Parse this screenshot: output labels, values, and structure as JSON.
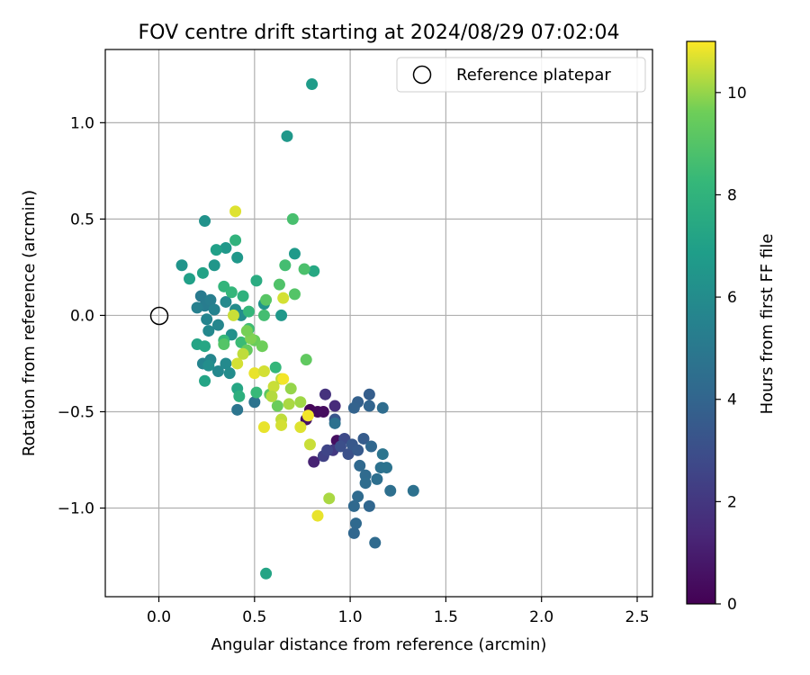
{
  "chart_data": {
    "type": "scatter",
    "title": "FOV centre drift starting at 2024/08/29 07:02:04",
    "xlabel": "Angular distance from reference (arcmin)",
    "ylabel": "Rotation from reference (arcmin)",
    "xlim": [
      -0.28,
      2.58
    ],
    "ylim": [
      -1.46,
      1.38
    ],
    "x_ticks": [
      {
        "value": 0.0,
        "label": "0.0"
      },
      {
        "value": 0.5,
        "label": "0.5"
      },
      {
        "value": 1.0,
        "label": "1.0"
      },
      {
        "value": 1.5,
        "label": "1.5"
      },
      {
        "value": 2.0,
        "label": "2.0"
      },
      {
        "value": 2.5,
        "label": "2.5"
      }
    ],
    "y_ticks": [
      {
        "value": 1.0,
        "label": "1.0"
      },
      {
        "value": 0.5,
        "label": "0.5"
      },
      {
        "value": 0.0,
        "label": "0.0"
      },
      {
        "value": -0.5,
        "label": "−0.5"
      },
      {
        "value": -1.0,
        "label": "−1.0"
      }
    ],
    "grid": true,
    "legend": {
      "placement": "top-right",
      "entries": [
        "Reference platepar"
      ]
    },
    "reference_point": {
      "x": 0.0,
      "y": 0.0
    },
    "colorbar": {
      "label": "Hours from first FF file",
      "min": 0,
      "max": 11,
      "colormap": "viridis",
      "ticks": [
        {
          "value": 0,
          "label": "0"
        },
        {
          "value": 2,
          "label": "2"
        },
        {
          "value": 4,
          "label": "4"
        },
        {
          "value": 6,
          "label": "6"
        },
        {
          "value": 8,
          "label": "8"
        },
        {
          "value": 10,
          "label": "10"
        }
      ]
    },
    "points": [
      {
        "x": 0.79,
        "y": -0.49,
        "h": 0.2
      },
      {
        "x": 0.83,
        "y": -0.5,
        "h": 0.3
      },
      {
        "x": 0.86,
        "y": -0.5,
        "h": 0.4
      },
      {
        "x": 0.93,
        "y": -0.65,
        "h": 0.5
      },
      {
        "x": 0.77,
        "y": -0.54,
        "h": 0.6
      },
      {
        "x": 0.81,
        "y": -0.76,
        "h": 1.2
      },
      {
        "x": 0.92,
        "y": -0.47,
        "h": 1.5
      },
      {
        "x": 0.87,
        "y": -0.41,
        "h": 1.8
      },
      {
        "x": 0.91,
        "y": -0.7,
        "h": 2.1
      },
      {
        "x": 0.86,
        "y": -0.73,
        "h": 2.4
      },
      {
        "x": 0.88,
        "y": -0.7,
        "h": 2.6
      },
      {
        "x": 0.97,
        "y": -0.64,
        "h": 2.8
      },
      {
        "x": 0.95,
        "y": -0.68,
        "h": 3.0
      },
      {
        "x": 0.99,
        "y": -0.72,
        "h": 3.1
      },
      {
        "x": 0.92,
        "y": -0.54,
        "h": 3.3
      },
      {
        "x": 1.01,
        "y": -0.67,
        "h": 3.4
      },
      {
        "x": 1.04,
        "y": -0.7,
        "h": 3.5
      },
      {
        "x": 1.07,
        "y": -0.64,
        "h": 3.6
      },
      {
        "x": 1.1,
        "y": -0.41,
        "h": 3.7
      },
      {
        "x": 1.04,
        "y": -0.45,
        "h": 3.8
      },
      {
        "x": 1.02,
        "y": -0.48,
        "h": 3.9
      },
      {
        "x": 1.1,
        "y": -0.47,
        "h": 4.0
      },
      {
        "x": 1.11,
        "y": -0.68,
        "h": 4.1
      },
      {
        "x": 1.05,
        "y": -0.78,
        "h": 4.2
      },
      {
        "x": 1.08,
        "y": -0.83,
        "h": 4.3
      },
      {
        "x": 1.08,
        "y": -0.87,
        "h": 4.4
      },
      {
        "x": 1.14,
        "y": -0.85,
        "h": 4.5
      },
      {
        "x": 1.16,
        "y": -0.79,
        "h": 4.6
      },
      {
        "x": 1.19,
        "y": -0.79,
        "h": 4.7
      },
      {
        "x": 1.17,
        "y": -0.72,
        "h": 4.8
      },
      {
        "x": 1.17,
        "y": -0.48,
        "h": 4.4
      },
      {
        "x": 1.04,
        "y": -0.94,
        "h": 4.3
      },
      {
        "x": 1.02,
        "y": -0.99,
        "h": 4.2
      },
      {
        "x": 1.1,
        "y": -0.99,
        "h": 4.1
      },
      {
        "x": 1.21,
        "y": -0.91,
        "h": 4.5
      },
      {
        "x": 1.33,
        "y": -0.91,
        "h": 4.6
      },
      {
        "x": 1.03,
        "y": -1.08,
        "h": 4.2
      },
      {
        "x": 1.02,
        "y": -1.13,
        "h": 4.1
      },
      {
        "x": 1.13,
        "y": -1.18,
        "h": 4.3
      },
      {
        "x": 0.92,
        "y": -0.56,
        "h": 4.6
      },
      {
        "x": 0.5,
        "y": -0.45,
        "h": 4.7
      },
      {
        "x": 0.41,
        "y": -0.49,
        "h": 4.8
      },
      {
        "x": 0.22,
        "y": 0.1,
        "h": 5.1
      },
      {
        "x": 0.24,
        "y": 0.05,
        "h": 5.2
      },
      {
        "x": 0.27,
        "y": 0.08,
        "h": 5.3
      },
      {
        "x": 0.2,
        "y": 0.04,
        "h": 5.4
      },
      {
        "x": 0.29,
        "y": 0.03,
        "h": 5.5
      },
      {
        "x": 0.25,
        "y": -0.02,
        "h": 5.6
      },
      {
        "x": 0.31,
        "y": -0.05,
        "h": 5.7
      },
      {
        "x": 0.26,
        "y": -0.08,
        "h": 5.8
      },
      {
        "x": 0.35,
        "y": 0.07,
        "h": 5.9
      },
      {
        "x": 0.23,
        "y": -0.25,
        "h": 5.6
      },
      {
        "x": 0.27,
        "y": -0.23,
        "h": 5.7
      },
      {
        "x": 0.31,
        "y": -0.29,
        "h": 5.8
      },
      {
        "x": 0.35,
        "y": -0.25,
        "h": 5.9
      },
      {
        "x": 0.37,
        "y": -0.3,
        "h": 6.0
      },
      {
        "x": 0.26,
        "y": -0.26,
        "h": 6.1
      },
      {
        "x": 0.4,
        "y": 0.03,
        "h": 6.0
      },
      {
        "x": 0.43,
        "y": 0.0,
        "h": 6.1
      },
      {
        "x": 0.38,
        "y": -0.1,
        "h": 6.2
      },
      {
        "x": 0.24,
        "y": 0.49,
        "h": 6.3
      },
      {
        "x": 0.12,
        "y": 0.26,
        "h": 6.4
      },
      {
        "x": 0.29,
        "y": 0.26,
        "h": 6.5
      },
      {
        "x": 0.35,
        "y": 0.35,
        "h": 6.6
      },
      {
        "x": 0.41,
        "y": 0.3,
        "h": 6.6
      },
      {
        "x": 0.71,
        "y": 0.32,
        "h": 6.7
      },
      {
        "x": 0.55,
        "y": 0.06,
        "h": 6.4
      },
      {
        "x": 0.64,
        "y": 0.0,
        "h": 6.6
      },
      {
        "x": 0.67,
        "y": 0.93,
        "h": 6.6
      },
      {
        "x": 0.8,
        "y": 1.2,
        "h": 6.8
      },
      {
        "x": 0.3,
        "y": 0.34,
        "h": 7.0
      },
      {
        "x": 0.16,
        "y": 0.19,
        "h": 7.0
      },
      {
        "x": 0.23,
        "y": 0.22,
        "h": 7.1
      },
      {
        "x": 0.2,
        "y": -0.15,
        "h": 7.2
      },
      {
        "x": 0.24,
        "y": -0.16,
        "h": 7.3
      },
      {
        "x": 0.24,
        "y": -0.34,
        "h": 7.2
      },
      {
        "x": 0.41,
        "y": -0.38,
        "h": 7.3
      },
      {
        "x": 0.81,
        "y": 0.23,
        "h": 7.4
      },
      {
        "x": 0.56,
        "y": -1.34,
        "h": 7.2
      },
      {
        "x": 0.42,
        "y": -0.42,
        "h": 7.8
      },
      {
        "x": 0.51,
        "y": 0.18,
        "h": 7.6
      },
      {
        "x": 0.44,
        "y": 0.1,
        "h": 7.9
      },
      {
        "x": 0.34,
        "y": 0.15,
        "h": 8.1
      },
      {
        "x": 0.38,
        "y": 0.12,
        "h": 8.2
      },
      {
        "x": 0.47,
        "y": 0.02,
        "h": 8.2
      },
      {
        "x": 0.34,
        "y": -0.13,
        "h": 8.3
      },
      {
        "x": 0.43,
        "y": -0.14,
        "h": 8.4
      },
      {
        "x": 0.47,
        "y": -0.07,
        "h": 8.5
      },
      {
        "x": 0.55,
        "y": 0.0,
        "h": 8.6
      },
      {
        "x": 0.61,
        "y": -0.27,
        "h": 8.2
      },
      {
        "x": 0.51,
        "y": -0.4,
        "h": 8.3
      },
      {
        "x": 0.4,
        "y": 0.39,
        "h": 8.0
      },
      {
        "x": 0.7,
        "y": 0.5,
        "h": 8.7
      },
      {
        "x": 0.66,
        "y": 0.26,
        "h": 8.6
      },
      {
        "x": 0.76,
        "y": 0.24,
        "h": 8.8
      },
      {
        "x": 0.63,
        "y": 0.16,
        "h": 8.9
      },
      {
        "x": 0.71,
        "y": 0.11,
        "h": 9.0
      },
      {
        "x": 0.56,
        "y": 0.08,
        "h": 9.1
      },
      {
        "x": 0.58,
        "y": -0.41,
        "h": 9.2
      },
      {
        "x": 0.46,
        "y": -0.18,
        "h": 9.4
      },
      {
        "x": 0.5,
        "y": -0.13,
        "h": 9.5
      },
      {
        "x": 0.54,
        "y": -0.16,
        "h": 9.6
      },
      {
        "x": 0.62,
        "y": -0.47,
        "h": 9.5
      },
      {
        "x": 0.77,
        "y": -0.23,
        "h": 9.3
      },
      {
        "x": 0.34,
        "y": -0.15,
        "h": 9.0
      },
      {
        "x": 0.4,
        "y": 0.54,
        "h": 10.7
      },
      {
        "x": 0.39,
        "y": 0.0,
        "h": 10.5
      },
      {
        "x": 0.65,
        "y": 0.09,
        "h": 10.6
      },
      {
        "x": 0.44,
        "y": -0.2,
        "h": 10.4
      },
      {
        "x": 0.41,
        "y": -0.25,
        "h": 10.6
      },
      {
        "x": 0.5,
        "y": -0.3,
        "h": 10.8
      },
      {
        "x": 0.55,
        "y": -0.29,
        "h": 10.6
      },
      {
        "x": 0.6,
        "y": -0.37,
        "h": 10.5
      },
      {
        "x": 0.64,
        "y": -0.33,
        "h": 10.4
      },
      {
        "x": 0.59,
        "y": -0.42,
        "h": 10.3
      },
      {
        "x": 0.68,
        "y": -0.46,
        "h": 10.2
      },
      {
        "x": 0.74,
        "y": -0.45,
        "h": 10.1
      },
      {
        "x": 0.64,
        "y": -0.54,
        "h": 10.4
      },
      {
        "x": 0.64,
        "y": -0.57,
        "h": 10.6
      },
      {
        "x": 0.55,
        "y": -0.58,
        "h": 10.8
      },
      {
        "x": 0.74,
        "y": -0.58,
        "h": 10.7
      },
      {
        "x": 0.78,
        "y": -0.52,
        "h": 10.9
      },
      {
        "x": 0.79,
        "y": -0.67,
        "h": 10.5
      },
      {
        "x": 0.89,
        "y": -0.95,
        "h": 10.2
      },
      {
        "x": 0.83,
        "y": -1.04,
        "h": 10.8
      },
      {
        "x": 0.65,
        "y": -0.33,
        "h": 10.9
      },
      {
        "x": 0.69,
        "y": -0.38,
        "h": 10.0
      },
      {
        "x": 0.48,
        "y": -0.12,
        "h": 9.8
      },
      {
        "x": 0.46,
        "y": -0.08,
        "h": 9.7
      }
    ]
  }
}
